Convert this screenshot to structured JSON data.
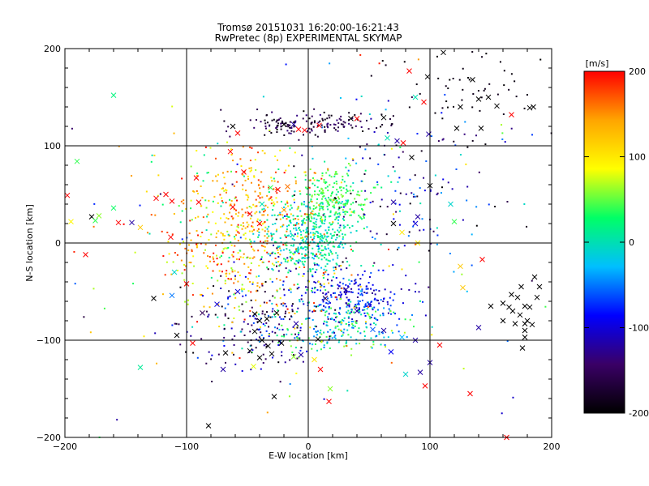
{
  "chart_data": {
    "type": "scatter",
    "title": "Tromsø 20151031 16:20:00-16:21:43",
    "subtitle": "RwPretec (8p) EXPERIMENTAL SKYMAP",
    "xlabel": "E-W location [km]",
    "ylabel": "N-S location [km]",
    "xlim": [
      -200,
      200
    ],
    "ylim": [
      -200,
      200
    ],
    "xticks": [
      -200,
      -100,
      0,
      100,
      200
    ],
    "yticks": [
      -200,
      -100,
      0,
      100,
      200
    ],
    "grid": true,
    "colorbar": {
      "label": "[m/s]",
      "range": [
        -200,
        200
      ],
      "ticks": [
        200,
        100,
        0,
        -100,
        -200
      ],
      "colormap": [
        "#000000",
        "#3a0066",
        "#0000ff",
        "#00bfff",
        "#00ff66",
        "#ffff00",
        "#ffa500",
        "#ff0000"
      ]
    },
    "series": [
      {
        "marker": "cross",
        "points": [
          [
            -160,
            152,
            20
          ],
          [
            -190,
            84,
            40
          ],
          [
            -198,
            49,
            200
          ],
          [
            -195,
            22,
            90
          ],
          [
            -178,
            27,
            -200
          ],
          [
            -175,
            23,
            40
          ],
          [
            -172,
            28,
            60
          ],
          [
            -160,
            36,
            30
          ],
          [
            -156,
            21,
            200
          ],
          [
            -145,
            21,
            -120
          ],
          [
            -138,
            16,
            120
          ],
          [
            -183,
            -12,
            200
          ],
          [
            -113,
            6,
            200
          ],
          [
            -110,
            -30,
            -10
          ],
          [
            -112,
            -54,
            -50
          ],
          [
            -127,
            -57,
            -200
          ],
          [
            -108,
            -95,
            -200
          ],
          [
            -138,
            -128,
            10
          ],
          [
            -82,
            -188,
            -200
          ],
          [
            -95,
            -103,
            200
          ],
          [
            -92,
            67,
            200
          ],
          [
            -117,
            50,
            200
          ],
          [
            -125,
            46,
            200
          ],
          [
            -112,
            43,
            200
          ],
          [
            -90,
            42,
            200
          ],
          [
            -64,
            94,
            200
          ],
          [
            -58,
            113,
            200
          ],
          [
            -62,
            120,
            -200
          ],
          [
            -53,
            73,
            200
          ],
          [
            -62,
            37,
            200
          ],
          [
            -48,
            30,
            200
          ],
          [
            -40,
            20,
            200
          ],
          [
            -25,
            55,
            200
          ],
          [
            -17,
            58,
            160
          ],
          [
            -20,
            34,
            140
          ],
          [
            -38,
            40,
            0
          ],
          [
            -31,
            57,
            40
          ],
          [
            -100,
            -42,
            200
          ],
          [
            -87,
            -72,
            -150
          ],
          [
            -75,
            -63,
            -100
          ],
          [
            -58,
            -50,
            -100
          ],
          [
            -44,
            -73,
            -200
          ],
          [
            -40,
            -80,
            -200
          ],
          [
            -34,
            -78,
            -200
          ],
          [
            -26,
            -72,
            -200
          ],
          [
            -44,
            -91,
            -200
          ],
          [
            -38,
            -100,
            -200
          ],
          [
            -33,
            -106,
            -200
          ],
          [
            -30,
            -114,
            -200
          ],
          [
            -48,
            -111,
            -200
          ],
          [
            -40,
            -118,
            -200
          ],
          [
            -22,
            -103,
            -200
          ],
          [
            -12,
            -117,
            60
          ],
          [
            -45,
            -127,
            80
          ],
          [
            -68,
            -113,
            -200
          ],
          [
            -10,
            -83,
            -120
          ],
          [
            -6,
            -115,
            -120
          ],
          [
            10,
            -130,
            200
          ],
          [
            8,
            -99,
            -200
          ],
          [
            -70,
            -130,
            -120
          ],
          [
            -28,
            -158,
            -200
          ],
          [
            18,
            -150,
            60
          ],
          [
            17,
            -163,
            200
          ],
          [
            5,
            -120,
            100
          ],
          [
            14,
            -57,
            -150
          ],
          [
            31,
            -48,
            -120
          ],
          [
            40,
            -70,
            -120
          ],
          [
            50,
            -63,
            -100
          ],
          [
            53,
            -89,
            -60
          ],
          [
            62,
            -90,
            -120
          ],
          [
            68,
            -112,
            -90
          ],
          [
            88,
            -100,
            -120
          ],
          [
            77,
            -97,
            -30
          ],
          [
            80,
            -135,
            -10
          ],
          [
            92,
            -133,
            -120
          ],
          [
            100,
            -123,
            -120
          ],
          [
            96,
            -147,
            200
          ],
          [
            108,
            -105,
            200
          ],
          [
            133,
            -155,
            200
          ],
          [
            127,
            -46,
            120
          ],
          [
            140,
            -87,
            -120
          ],
          [
            125,
            -24,
            120
          ],
          [
            143,
            -17,
            200
          ],
          [
            172,
            -56,
            -200
          ],
          [
            175,
            -45,
            -200
          ],
          [
            178,
            -65,
            -200
          ],
          [
            182,
            -66,
            -200
          ],
          [
            167,
            -53,
            -200
          ],
          [
            168,
            -70,
            -200
          ],
          [
            174,
            -74,
            -200
          ],
          [
            170,
            -83,
            -200
          ],
          [
            180,
            -80,
            -200
          ],
          [
            184,
            -84,
            -200
          ],
          [
            188,
            -56,
            -200
          ],
          [
            165,
            -66,
            -200
          ],
          [
            178,
            -90,
            -200
          ],
          [
            190,
            -45,
            -200
          ],
          [
            160,
            -80,
            -200
          ],
          [
            178,
            -97,
            -200
          ],
          [
            186,
            -35,
            -200
          ],
          [
            176,
            -108,
            -200
          ],
          [
            160,
            -62,
            -200
          ],
          [
            150,
            -65,
            -200
          ],
          [
            163,
            -200,
            200
          ],
          [
            120,
            22,
            40
          ],
          [
            117,
            40,
            -10
          ],
          [
            100,
            59,
            -200
          ],
          [
            90,
            27,
            -120
          ],
          [
            88,
            20,
            -100
          ],
          [
            90,
            0,
            100
          ],
          [
            77,
            11,
            100
          ],
          [
            70,
            20,
            -200
          ],
          [
            70,
            42,
            -120
          ],
          [
            85,
            88,
            -200
          ],
          [
            73,
            105,
            -120
          ],
          [
            78,
            103,
            200
          ],
          [
            62,
            129,
            -200
          ],
          [
            65,
            108,
            0
          ],
          [
            40,
            128,
            200
          ],
          [
            35,
            128,
            -200
          ],
          [
            9,
            121,
            200
          ],
          [
            -3,
            116,
            200
          ],
          [
            -8,
            117,
            200
          ],
          [
            -20,
            122,
            -200
          ],
          [
            -12,
            122,
            -120
          ],
          [
            99,
            112,
            -120
          ],
          [
            88,
            150,
            0
          ],
          [
            95,
            145,
            200
          ],
          [
            98,
            171,
            -200
          ],
          [
            135,
            168,
            -200
          ],
          [
            148,
            150,
            -200
          ],
          [
            155,
            141,
            -200
          ],
          [
            167,
            132,
            200
          ],
          [
            182,
            139,
            -200
          ],
          [
            185,
            140,
            -200
          ],
          [
            142,
            118,
            -200
          ],
          [
            140,
            148,
            -200
          ],
          [
            125,
            140,
            -200
          ],
          [
            122,
            118,
            -200
          ],
          [
            83,
            177,
            200
          ],
          [
            111,
            196,
            -200
          ],
          [
            178,
            -83,
            -200
          ]
        ]
      },
      {
        "marker": "dot",
        "clusters": [
          {
            "cx": 2,
            "cy": 5,
            "sx": 18,
            "sy": 20,
            "n": 400,
            "vmin": -30,
            "vmax": 40
          },
          {
            "cx": 20,
            "cy": 45,
            "sx": 15,
            "sy": 15,
            "n": 230,
            "vmin": 10,
            "vmax": 60
          },
          {
            "cx": -40,
            "cy": 35,
            "sx": 25,
            "sy": 25,
            "n": 230,
            "vmin": 80,
            "vmax": 200
          },
          {
            "cx": 0,
            "cy": 123,
            "sx": 28,
            "sy": 6,
            "n": 150,
            "vmin": -200,
            "vmax": -130
          },
          {
            "cx": 35,
            "cy": -55,
            "sx": 22,
            "sy": 14,
            "n": 220,
            "vmin": -130,
            "vmax": -50
          },
          {
            "cx": 20,
            "cy": -85,
            "sx": 30,
            "sy": 15,
            "n": 220,
            "vmin": -60,
            "vmax": 70
          },
          {
            "cx": -60,
            "cy": -20,
            "sx": 30,
            "sy": 25,
            "n": 160,
            "vmin": 60,
            "vmax": 200
          },
          {
            "cx": -45,
            "cy": -85,
            "sx": 28,
            "sy": 20,
            "n": 140,
            "vmin": -200,
            "vmax": -60
          },
          {
            "cx": -20,
            "cy": -50,
            "sx": 35,
            "sy": 30,
            "n": 170,
            "vmin": -200,
            "vmax": 200
          },
          {
            "cx": 130,
            "cy": 160,
            "sx": 40,
            "sy": 25,
            "n": 60,
            "vmin": -200,
            "vmax": -180
          },
          {
            "cx": 80,
            "cy": 60,
            "sx": 40,
            "sy": 40,
            "n": 140,
            "vmin": -200,
            "vmax": 0
          },
          {
            "cx": -80,
            "cy": 40,
            "sx": 30,
            "sy": 40,
            "n": 110,
            "vmin": 0,
            "vmax": 200
          },
          {
            "cx": 0,
            "cy": 0,
            "sx": 110,
            "sy": 110,
            "n": 150,
            "vmin": -200,
            "vmax": 200
          }
        ]
      }
    ]
  }
}
